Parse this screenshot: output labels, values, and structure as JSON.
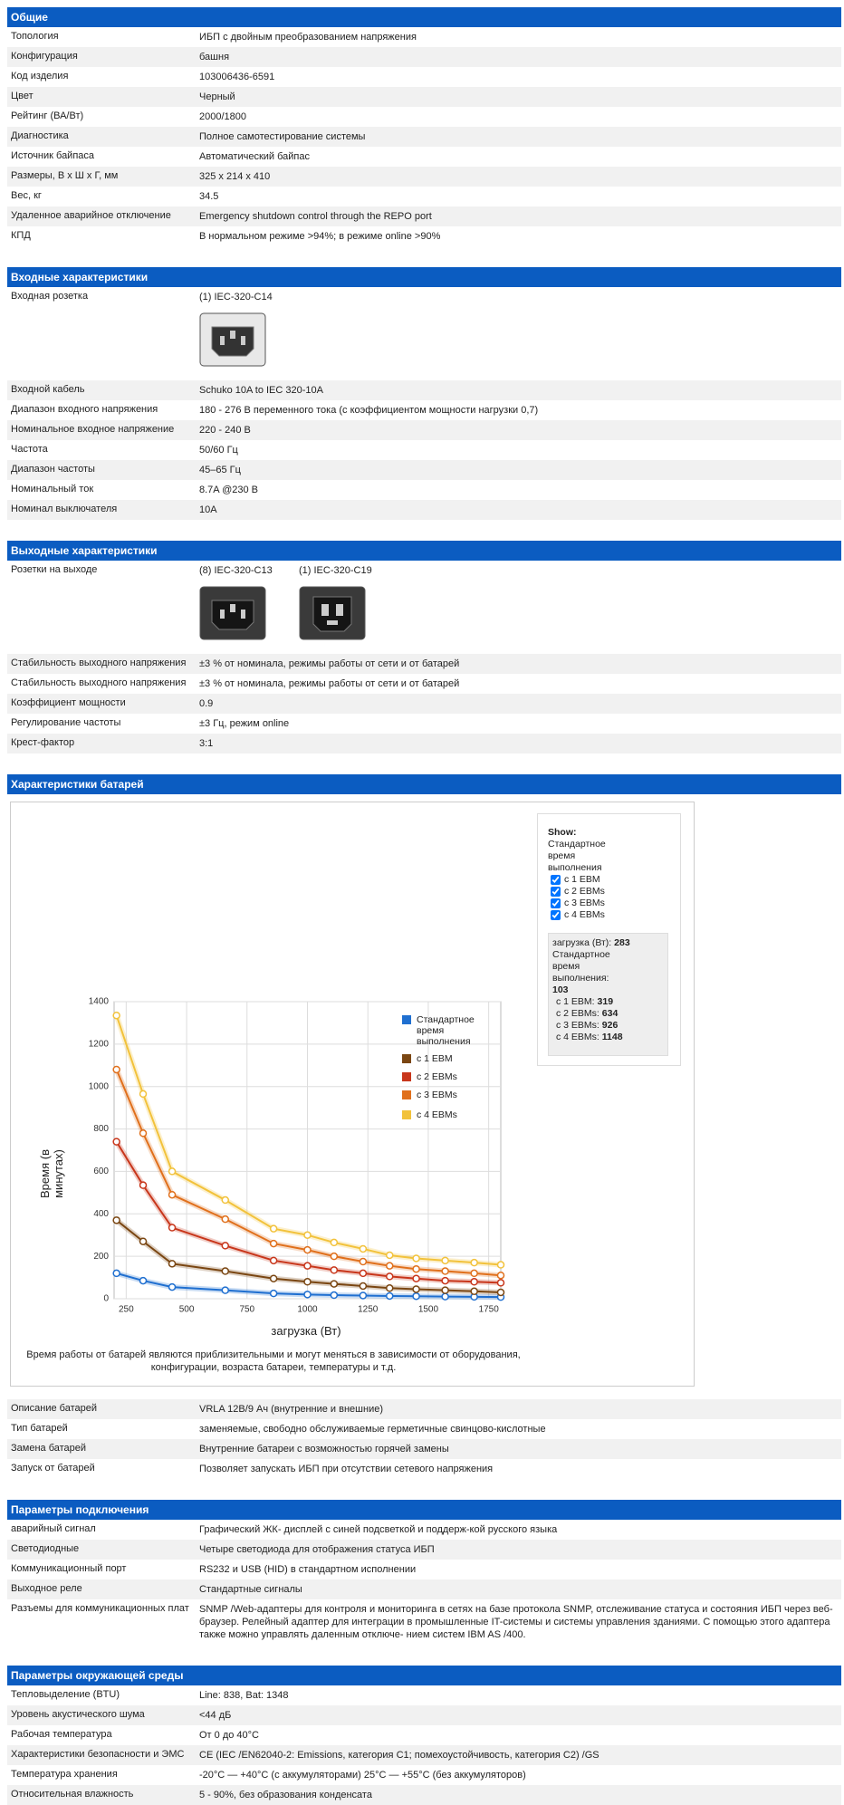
{
  "sections": [
    {
      "title": "Общие",
      "rows": [
        [
          "Топология",
          "ИБП с двойным преобразованием напряжения"
        ],
        [
          "Конфигурация",
          "башня"
        ],
        [
          "Код изделия",
          "103006436-6591"
        ],
        [
          "Цвет",
          "Черный"
        ],
        [
          "Рейтинг (ВА/Вт)",
          "2000/1800"
        ],
        [
          "Диагностика",
          "Полное самотестирование системы"
        ],
        [
          "Источник байпаса",
          "Автоматический байпас"
        ],
        [
          "Размеры, В x Ш x Г, мм",
          "325 x 214 x 410"
        ],
        [
          "Вес, кг",
          "34.5"
        ],
        [
          "Удаленное аварийное отключение",
          "Emergency shutdown control through the REPO port"
        ],
        [
          "КПД",
          "В нормальном режиме >94%; в режиме online >90%"
        ]
      ]
    },
    {
      "title": "Входные характеристики",
      "rows": [
        [
          "Входная розетка",
          "(1) IEC-320-C14"
        ],
        [
          "Входной кабель",
          "Schuko 10A to IEC 320-10A"
        ],
        [
          "Диапазон входного напряжения",
          "180 - 276 В переменного тока (с коэффициентом мощности нагрузки 0,7)"
        ],
        [
          "Номинальное входное напряжение",
          "220 - 240 В"
        ],
        [
          "Частота",
          "50/60 Гц"
        ],
        [
          "Диапазон частоты",
          "45–65 Гц"
        ],
        [
          "Номинальный ток",
          "8.7A @230 В"
        ],
        [
          "Номинал выключателя",
          "10A"
        ]
      ]
    },
    {
      "title": "Выходные характеристики",
      "rows": [
        [
          "Розетки на выходе",
          "(8) IEC-320-C13",
          "(1) IEC-320-C19"
        ],
        [
          "Стабильность выходного напряжения",
          "±3 % от номинала, режимы работы от сети и от батарей"
        ],
        [
          "Стабильность выходного напряжения",
          "±3 % от номинала, режимы работы от сети и от батарей"
        ],
        [
          "Коэффициент мощности",
          "0.9"
        ],
        [
          "Регулирование частоты",
          "±3 Гц, режим online"
        ],
        [
          "Крест-фактор",
          "3:1"
        ]
      ]
    },
    {
      "title": "Характеристики батарей",
      "rows": [
        [
          "Описание батарей",
          "VRLA 12В/9 Ач (внутренние и внешние)"
        ],
        [
          "Тип батарей",
          "заменяемые, свободно обслуживаемые герметичные свинцово-кислотные"
        ],
        [
          "Замена батарей",
          "Внутренние батареи с возможностью горячей замены"
        ],
        [
          "Запуск от батарей",
          "Позволяет запускать ИБП при отсутствии сетевого напряжения"
        ]
      ]
    },
    {
      "title": "Параметры подключения",
      "rows": [
        [
          "аварийный сигнал",
          "Графический ЖК- дисплей с синей подсветкой и поддерж-кой русского языка"
        ],
        [
          "Светодиодные",
          "Четыре светодиода для отображения статуса ИБП"
        ],
        [
          "Коммуникационный порт",
          "RS232 и USB (HID) в стандартном исполнении"
        ],
        [
          "Выходное реле",
          "Стандартные сигналы"
        ],
        [
          "Разъемы для коммуникационных плат",
          "SNMP /Web-адаптеры для контроля и мониторинга в сетях на базе протокола SNMP, отслеживание статуса и состояния ИБП через веб-браузер. Релейный адаптер для интеграции в промышленные IT-системы и системы управления зданиями. С помощью этого адаптера также можно управлять даленным отключе- нием систем IBM AS /400."
        ]
      ]
    },
    {
      "title": "Параметры окружающей среды",
      "rows": [
        [
          "Тепловыделение (BTU)",
          "Line: 838, Bat: 1348"
        ],
        [
          "Уровень акустического шума",
          "<44 дБ"
        ],
        [
          "Рабочая температура",
          "От 0 до 40°C"
        ],
        [
          "Характеристики безопасности и ЭМС",
          "CE (IEC /EN62040-2: Emissions, категория C1; помехоустойчивость, категория C2) /GS"
        ],
        [
          "Температура хранения",
          "-20°C — +40°C (с аккумуляторами) 25°C — +55°C (без аккумуляторов)"
        ],
        [
          "Относительная влажность",
          "5 - 90%, без образования конденсата"
        ]
      ]
    }
  ],
  "chart_data": {
    "type": "line",
    "x_label": "загрузка (Вт)",
    "y_label": "Время (в минутах)",
    "note": "Время работы от батарей являются приблизительными и могут меняться в зависимости от оборудования, конфигурации, возраста батареи, температуры и т.д.",
    "x": [
      210,
      320,
      440,
      660,
      860,
      1000,
      1110,
      1230,
      1340,
      1450,
      1570,
      1690,
      1800
    ],
    "series": [
      {
        "name": "Стандартное время выполнения",
        "color": "#1f6fd0",
        "values": [
          120,
          85,
          55,
          40,
          25,
          20,
          17,
          15,
          13,
          12,
          10,
          9,
          8
        ]
      },
      {
        "name": "с 1 EBM",
        "color": "#7a4612",
        "values": [
          370,
          270,
          165,
          130,
          95,
          80,
          70,
          60,
          50,
          45,
          40,
          35,
          30
        ]
      },
      {
        "name": "с 2 EBMs",
        "color": "#c8361b",
        "values": [
          740,
          535,
          335,
          250,
          180,
          155,
          135,
          120,
          105,
          95,
          85,
          80,
          75
        ]
      },
      {
        "name": "с 3 EBMs",
        "color": "#e0701c",
        "values": [
          1080,
          780,
          490,
          375,
          260,
          230,
          200,
          175,
          155,
          140,
          130,
          120,
          110
        ]
      },
      {
        "name": "с 4 EBMs",
        "color": "#f2c23b",
        "values": [
          1335,
          965,
          600,
          465,
          330,
          300,
          265,
          235,
          205,
          190,
          180,
          170,
          160
        ]
      }
    ],
    "xlim": [
      200,
      1800
    ],
    "ylim": [
      0,
      1400
    ],
    "xticks": [
      250,
      500,
      750,
      1000,
      1250,
      1500,
      1750
    ],
    "yticks": [
      0,
      200,
      400,
      600,
      800,
      1000,
      1200,
      1400
    ],
    "grid": true
  },
  "chart_controls": {
    "show_label": "Show:",
    "readout": [
      {
        "label": "загрузка (Вт):",
        "value": 283
      },
      {
        "label": "Стандартное время выполнения:",
        "value": 103
      },
      {
        "label": "с 1 EBM:",
        "value": 319
      },
      {
        "label": "с 2 EBMs:",
        "value": 634
      },
      {
        "label": "с 3 EBMs:",
        "value": 926
      },
      {
        "label": "с 4 EBMs:",
        "value": 1148
      }
    ]
  }
}
